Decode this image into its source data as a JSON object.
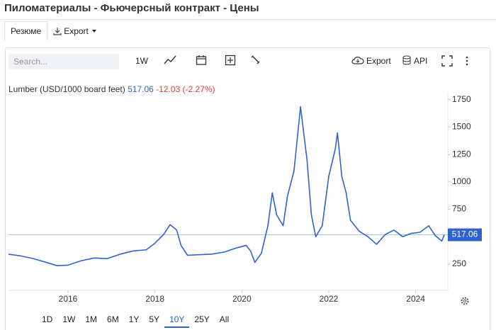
{
  "header": {
    "title": "Пиломатериалы - Фьючерсный контракт - Цены"
  },
  "tabs": [
    "Резюме",
    "Export"
  ],
  "toolbar": {
    "search_placeholder": "Search...",
    "interval": "1W",
    "export": "Export",
    "api": "API"
  },
  "chart_data": {
    "type": "line",
    "change_label": "-12.03 (-2.27%)",
    "x": [
      2014.63,
      2014.9,
      2015.2,
      2015.5,
      2015.75,
      2016.0,
      2016.3,
      2016.6,
      2016.9,
      2017.2,
      2017.5,
      2017.8,
      2018.0,
      2018.2,
      2018.35,
      2018.5,
      2018.6,
      2018.75,
      2019.0,
      2019.3,
      2019.6,
      2019.9,
      2020.1,
      2020.2,
      2020.3,
      2020.45,
      2020.6,
      2020.7,
      2020.8,
      2020.95,
      2021.05,
      2021.2,
      2021.35,
      2021.5,
      2021.6,
      2021.7,
      2021.85,
      2022.0,
      2022.15,
      2022.2,
      2022.3,
      2022.4,
      2022.5,
      2022.7,
      2022.9,
      2023.1,
      2023.3,
      2023.5,
      2023.7,
      2023.9,
      2024.1,
      2024.3,
      2024.45,
      2024.6,
      2024.66
    ],
    "series": [
      {
        "name": "Lumber (USD/1000 board feet)",
        "color": "#2e63cf",
        "values": [
          340,
          325,
          300,
          265,
          235,
          240,
          280,
          305,
          300,
          340,
          370,
          380,
          440,
          520,
          610,
          560,
          420,
          330,
          335,
          340,
          360,
          400,
          420,
          370,
          265,
          350,
          600,
          900,
          700,
          600,
          870,
          1100,
          1686,
          1200,
          700,
          500,
          600,
          1050,
          1300,
          1448,
          1050,
          900,
          650,
          550,
          500,
          430,
          520,
          560,
          500,
          530,
          540,
          600,
          510,
          460,
          517.06
        ]
      }
    ],
    "xlim": [
      2014.63,
      2024.74
    ],
    "xticks": [
      2016,
      2018,
      2020,
      2022,
      2024
    ],
    "ylim": [
      10,
      1820
    ],
    "yticks": [
      250,
      750,
      1000,
      1250,
      1500,
      1750
    ],
    "grid": false,
    "last_value_color": "#2e63cf"
  },
  "range_buttons": [
    "1D",
    "1W",
    "1M",
    "6M",
    "1Y",
    "5Y",
    "10Y",
    "25Y",
    "All"
  ],
  "selected_range": "10Y"
}
